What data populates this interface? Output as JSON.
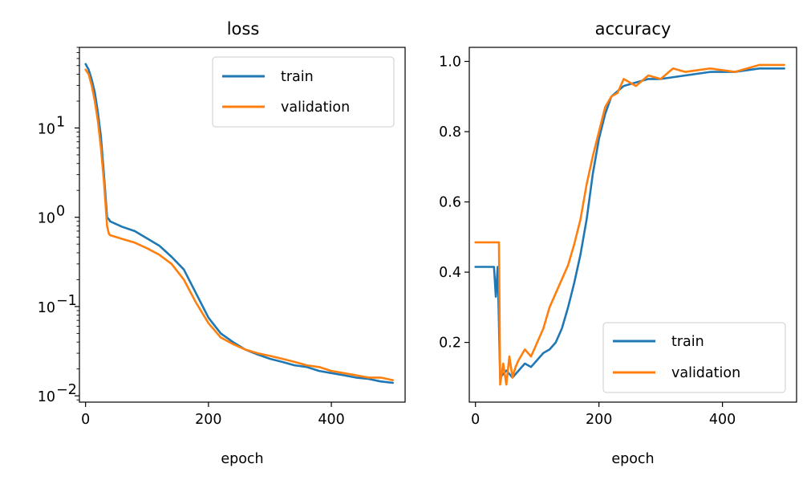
{
  "colors": {
    "train": "#1f77b4",
    "validation": "#ff7f0e"
  },
  "chart_data": [
    {
      "type": "line",
      "title": "loss",
      "xlabel": "epoch",
      "ylabel": "",
      "yscale": "log",
      "xlim": [
        -10,
        520
      ],
      "ylim": [
        0.0085,
        80
      ],
      "xticks": [
        0,
        200,
        400
      ],
      "yticks": [
        {
          "value": 10,
          "base": "10",
          "exp": "1"
        },
        {
          "value": 1,
          "base": "10",
          "exp": "0"
        },
        {
          "value": 0.1,
          "base": "10",
          "exp": "−1"
        },
        {
          "value": 0.01,
          "base": "10",
          "exp": "−2"
        }
      ],
      "legend": {
        "position": "top-right",
        "entries": [
          "train",
          "validation"
        ]
      },
      "series": [
        {
          "name": "train",
          "x": [
            0,
            5,
            10,
            15,
            20,
            25,
            30,
            35,
            38,
            40,
            60,
            80,
            100,
            120,
            140,
            160,
            180,
            200,
            220,
            240,
            260,
            280,
            300,
            320,
            340,
            360,
            380,
            400,
            420,
            440,
            460,
            480,
            500
          ],
          "y": [
            52,
            45,
            35,
            25,
            15,
            8,
            3,
            1.0,
            0.95,
            0.9,
            0.78,
            0.7,
            0.58,
            0.48,
            0.36,
            0.26,
            0.14,
            0.075,
            0.05,
            0.04,
            0.033,
            0.029,
            0.026,
            0.024,
            0.022,
            0.021,
            0.019,
            0.018,
            0.017,
            0.016,
            0.0155,
            0.0145,
            0.014
          ]
        },
        {
          "name": "validation",
          "x": [
            0,
            5,
            10,
            15,
            20,
            25,
            30,
            35,
            38,
            40,
            60,
            80,
            100,
            120,
            140,
            160,
            180,
            200,
            220,
            240,
            260,
            280,
            300,
            320,
            340,
            360,
            380,
            400,
            420,
            440,
            460,
            480,
            500
          ],
          "y": [
            45,
            40,
            30,
            20,
            12,
            6,
            2.5,
            0.8,
            0.65,
            0.63,
            0.57,
            0.52,
            0.45,
            0.38,
            0.3,
            0.2,
            0.11,
            0.065,
            0.045,
            0.038,
            0.033,
            0.03,
            0.028,
            0.026,
            0.024,
            0.022,
            0.021,
            0.019,
            0.018,
            0.017,
            0.016,
            0.016,
            0.015
          ]
        }
      ]
    },
    {
      "type": "line",
      "title": "accuracy",
      "xlabel": "epoch",
      "ylabel": "",
      "yscale": "linear",
      "xlim": [
        -10,
        520
      ],
      "ylim": [
        0.03,
        1.04
      ],
      "xticks": [
        0,
        200,
        400
      ],
      "yticks": [
        0.2,
        0.4,
        0.6,
        0.8,
        1.0
      ],
      "ytick_labels": [
        "0.2",
        "0.4",
        "0.6",
        "0.8",
        "1.0"
      ],
      "legend": {
        "position": "bottom-right",
        "entries": [
          "train",
          "validation"
        ]
      },
      "series": [
        {
          "name": "train",
          "x": [
            0,
            30,
            33,
            36,
            40,
            50,
            60,
            70,
            80,
            90,
            100,
            110,
            120,
            130,
            140,
            150,
            160,
            170,
            180,
            190,
            200,
            210,
            220,
            240,
            260,
            280,
            300,
            340,
            380,
            420,
            460,
            500
          ],
          "y": [
            0.415,
            0.415,
            0.33,
            0.415,
            0.1,
            0.12,
            0.1,
            0.12,
            0.14,
            0.13,
            0.15,
            0.17,
            0.18,
            0.2,
            0.24,
            0.3,
            0.37,
            0.45,
            0.55,
            0.68,
            0.78,
            0.85,
            0.9,
            0.93,
            0.94,
            0.95,
            0.95,
            0.96,
            0.97,
            0.97,
            0.98,
            0.98
          ]
        },
        {
          "name": "validation",
          "x": [
            0,
            38,
            40,
            45,
            50,
            55,
            60,
            65,
            70,
            80,
            90,
            100,
            110,
            120,
            130,
            140,
            150,
            160,
            170,
            180,
            190,
            200,
            210,
            220,
            230,
            240,
            260,
            280,
            300,
            320,
            340,
            380,
            420,
            460,
            500
          ],
          "y": [
            0.485,
            0.485,
            0.08,
            0.14,
            0.08,
            0.16,
            0.1,
            0.13,
            0.15,
            0.18,
            0.16,
            0.2,
            0.24,
            0.3,
            0.34,
            0.38,
            0.42,
            0.48,
            0.55,
            0.65,
            0.73,
            0.8,
            0.87,
            0.9,
            0.91,
            0.95,
            0.93,
            0.96,
            0.95,
            0.98,
            0.97,
            0.98,
            0.97,
            0.99,
            0.99
          ]
        }
      ]
    }
  ]
}
